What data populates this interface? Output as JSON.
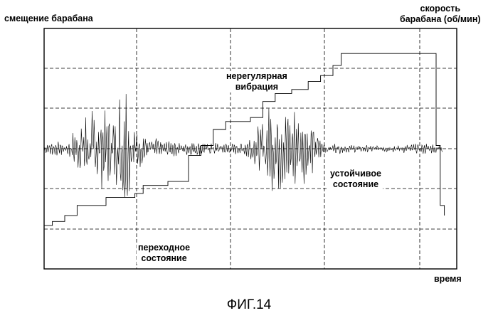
{
  "chart_data": {
    "type": "line",
    "title": "",
    "xlabel": "время",
    "ylabel_left": "смещение барабана",
    "ylabel_right_line1": "скорость",
    "ylabel_right_line2": "барабана (об/мин)",
    "grid": true,
    "gridlines": {
      "vertical": 4,
      "horizontal": 4
    },
    "series": [
      {
        "role": "drum-displacement",
        "kind": "oscillation",
        "baseline": 0,
        "envelope": [
          [
            0,
            0.5
          ],
          [
            0.06,
            0.7
          ],
          [
            0.1,
            2.8
          ],
          [
            0.14,
            3.2
          ],
          [
            0.18,
            2.6
          ],
          [
            0.2,
            6.5
          ],
          [
            0.22,
            2.2
          ],
          [
            0.26,
            1.2
          ],
          [
            0.32,
            0.6
          ],
          [
            0.45,
            0.5
          ],
          [
            0.5,
            0.5
          ],
          [
            0.53,
            1.4
          ],
          [
            0.56,
            3.3
          ],
          [
            0.62,
            3.7
          ],
          [
            0.66,
            2.8
          ],
          [
            0.7,
            0.5
          ],
          [
            0.8,
            0.3
          ],
          [
            0.88,
            0.3
          ],
          [
            0.96,
            0.45
          ],
          [
            1.0,
            0.3
          ]
        ]
      },
      {
        "role": "drum-speed",
        "kind": "step",
        "points": [
          [
            0,
            0.1
          ],
          [
            0.02,
            0.12
          ],
          [
            0.05,
            0.15
          ],
          [
            0.08,
            0.2
          ],
          [
            0.12,
            0.2
          ],
          [
            0.15,
            0.24
          ],
          [
            0.2,
            0.24
          ],
          [
            0.22,
            0.26
          ],
          [
            0.24,
            0.3
          ],
          [
            0.3,
            0.32
          ],
          [
            0.35,
            0.45
          ],
          [
            0.38,
            0.5
          ],
          [
            0.41,
            0.58
          ],
          [
            0.44,
            0.62
          ],
          [
            0.5,
            0.64
          ],
          [
            0.53,
            0.72
          ],
          [
            0.56,
            0.76
          ],
          [
            0.6,
            0.78
          ],
          [
            0.64,
            0.82
          ],
          [
            0.67,
            0.85
          ],
          [
            0.7,
            0.9
          ],
          [
            0.72,
            0.96
          ],
          [
            0.78,
            0.96
          ],
          [
            0.84,
            0.96
          ],
          [
            0.93,
            0.96
          ],
          [
            0.95,
            0.5
          ],
          [
            0.96,
            0.2
          ],
          [
            0.97,
            0.15
          ]
        ]
      }
    ],
    "annotations": [
      {
        "line1": "нерегулярная",
        "line2": "вибрация"
      },
      {
        "line1": "устойчивое",
        "line2": "состояние"
      },
      {
        "line1": "переходное",
        "line2": "состояние"
      }
    ],
    "caption": "ФИГ.14"
  }
}
